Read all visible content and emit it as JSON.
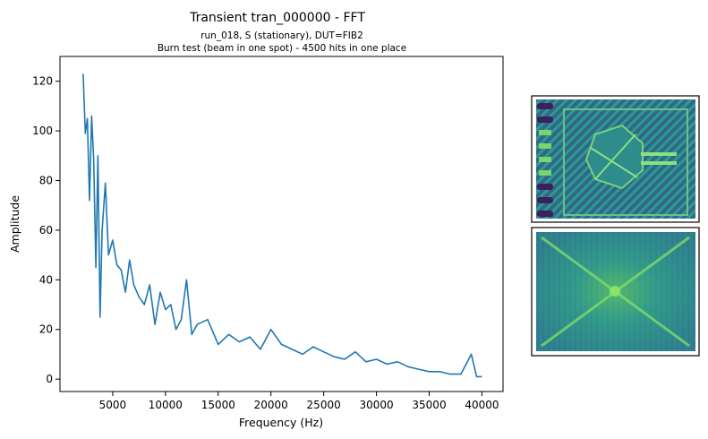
{
  "title": "Transient tran_000000 - FFT",
  "subtitle_line1": "run_018, S (stationary), DUT=FIB2",
  "subtitle_line2": "Burn test (beam in one spot) - 4500 hits in one place",
  "colors": {
    "line": "#1f77b4"
  },
  "chart_data": {
    "type": "line",
    "title": "Transient tran_000000 - FFT",
    "xlabel": "Frequency (Hz)",
    "ylabel": "Amplitude",
    "xlim": [
      0,
      42000
    ],
    "ylim": [
      -5,
      130
    ],
    "xticks": [
      5000,
      10000,
      15000,
      20000,
      25000,
      30000,
      35000,
      40000
    ],
    "yticks": [
      0,
      20,
      40,
      60,
      80,
      100,
      120
    ],
    "grid": false,
    "series": [
      {
        "x": [
          2200,
          2400,
          2600,
          2800,
          3000,
          3200,
          3400,
          3600,
          3800,
          4000,
          4300,
          4600,
          5000,
          5400,
          5800,
          6200,
          6600,
          7000,
          7500,
          8000,
          8500,
          9000,
          9500,
          10000,
          10500,
          11000,
          11500,
          12000,
          12500,
          13000,
          14000,
          15000,
          16000,
          17000,
          18000,
          19000,
          20000,
          21000,
          22000,
          23000,
          24000,
          25000,
          26000,
          27000,
          28000,
          29000,
          30000,
          31000,
          32000,
          33000,
          34000,
          35000,
          36000,
          37000,
          38000,
          39000,
          39500,
          40000
        ],
        "y": [
          123,
          99,
          105,
          72,
          106,
          88,
          45,
          90,
          25,
          60,
          79,
          50,
          56,
          46,
          44,
          35,
          48,
          38,
          33,
          30,
          38,
          22,
          35,
          28,
          30,
          20,
          24,
          40,
          18,
          22,
          24,
          14,
          18,
          15,
          17,
          12,
          20,
          14,
          12,
          10,
          13,
          11,
          9,
          8,
          11,
          7,
          8,
          6,
          7,
          5,
          4,
          3,
          3,
          2,
          2,
          10,
          1,
          1
        ]
      }
    ]
  },
  "images": [
    {
      "name": "top-chip-thumbnail"
    },
    {
      "name": "bottom-chip-thumbnail"
    }
  ]
}
